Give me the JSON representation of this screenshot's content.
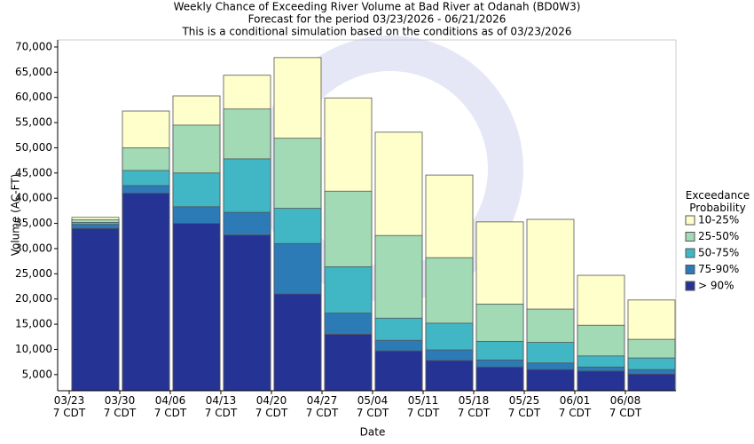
{
  "chart_data": {
    "type": "overlapping-bar",
    "title": "Weekly Chance of Exceeding River Volume at Bad River at Odanah (BD0W3)",
    "subtitle": "Forecast for the period 03/23/2026 - 06/21/2026",
    "subtitle2": "This is a conditional simulation based on the conditions as of 03/23/2026",
    "x_label": "Date",
    "y_label": "Volume (AC-FT)",
    "legend_title": "Exceedance\nProbability",
    "categories": [
      "03/23\n7 CDT",
      "03/30\n7 CDT",
      "04/06\n7 CDT",
      "04/13\n7 CDT",
      "04/20\n7 CDT",
      "04/27\n7 CDT",
      "05/04\n7 CDT",
      "05/11\n7 CDT",
      "05/18\n7 CDT",
      "05/25\n7 CDT",
      "06/01\n7 CDT",
      "06/08\n7 CDT"
    ],
    "series": [
      {
        "name": "10-25%",
        "color": "#ffffcc",
        "values": [
          36200,
          57300,
          60300,
          64400,
          67900,
          59900,
          53100,
          44600,
          35300,
          35800,
          24700,
          19800
        ]
      },
      {
        "name": "25-50%",
        "color": "#a1dab4",
        "values": [
          35700,
          50000,
          54500,
          57700,
          51900,
          41400,
          32600,
          28200,
          19000,
          18000,
          14800,
          12000
        ]
      },
      {
        "name": "50-75%",
        "color": "#41b6c4",
        "values": [
          35200,
          45500,
          45000,
          47800,
          38000,
          26400,
          16200,
          15200,
          11600,
          11400,
          8700,
          8300
        ]
      },
      {
        "name": "75-90%",
        "color": "#2c7bb6",
        "values": [
          34800,
          42500,
          38300,
          37200,
          31000,
          17200,
          11800,
          9900,
          7900,
          7300,
          6500,
          6000
        ]
      },
      {
        "name": "> 90%",
        "color": "#253494",
        "values": [
          34000,
          41000,
          35000,
          32700,
          21000,
          13000,
          9700,
          7800,
          6500,
          6000,
          5700,
          5100
        ]
      }
    ],
    "ylim": [
      1800,
      71400
    ],
    "yticks": [
      {
        "value": 5000,
        "label": "5,000"
      },
      {
        "value": 10000,
        "label": "10,000"
      },
      {
        "value": 15000,
        "label": "15,000"
      },
      {
        "value": 20000,
        "label": "20,000"
      },
      {
        "value": 25000,
        "label": "25,000"
      },
      {
        "value": 30000,
        "label": "30,000"
      },
      {
        "value": 35000,
        "label": "35,000"
      },
      {
        "value": 40000,
        "label": "40,000"
      },
      {
        "value": 45000,
        "label": "45,000"
      },
      {
        "value": 50000,
        "label": "50,000"
      },
      {
        "value": 55000,
        "label": "55,000"
      },
      {
        "value": 60000,
        "label": "60,000"
      },
      {
        "value": 65000,
        "label": "65,000"
      },
      {
        "value": 70000,
        "label": "70,000"
      }
    ],
    "legend_position": "right"
  }
}
